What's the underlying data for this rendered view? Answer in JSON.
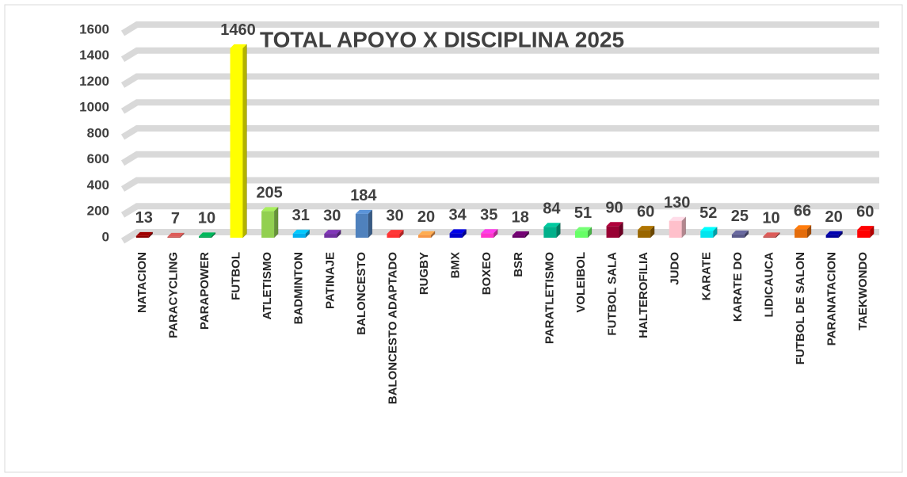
{
  "chart_data": {
    "type": "bar3d",
    "title": "TOTAL  APOYO X DISCIPLINA 2025",
    "categories": [
      "NATACION",
      "PARACYCLING",
      "PARAPOWER",
      "FUTBOL",
      "ATLETISMO",
      "BADMINTON",
      "PATINAJE",
      "BALONCESTO",
      "BALONCESTO ADAPTADO",
      "RUGBY",
      "BMX",
      "BOXEO",
      "BSR",
      "PARATLETISMO",
      "VOLEIBOL",
      "FUTBOL SALA",
      "HALTEROFILIA",
      "JUDO",
      "KARATE",
      "KARATE DO",
      "LIDICAUCA",
      "FUTBOL DE SALON",
      "PARANATACION",
      "TAEKWONDO"
    ],
    "values": [
      13,
      7,
      10,
      1460,
      205,
      31,
      30,
      184,
      30,
      20,
      34,
      35,
      18,
      84,
      51,
      90,
      60,
      130,
      52,
      25,
      10,
      66,
      20,
      60
    ],
    "colors": [
      "#8b0000",
      "#c0504d",
      "#00a050",
      "#ffff00",
      "#92d050",
      "#00b0f0",
      "#7030a0",
      "#4f81bd",
      "#ff3030",
      "#f79646",
      "#0000cc",
      "#ff33cc",
      "#660066",
      "#00b08a",
      "#66ff66",
      "#990033",
      "#996600",
      "#ffc0cb",
      "#00e5ee",
      "#5a5a8a",
      "#c0504d",
      "#e46c0a",
      "#000099",
      "#ff0000"
    ],
    "ylim": [
      0,
      1600
    ],
    "yticks": [
      0,
      200,
      400,
      600,
      800,
      1000,
      1200,
      1400,
      1600
    ],
    "grid": true
  }
}
